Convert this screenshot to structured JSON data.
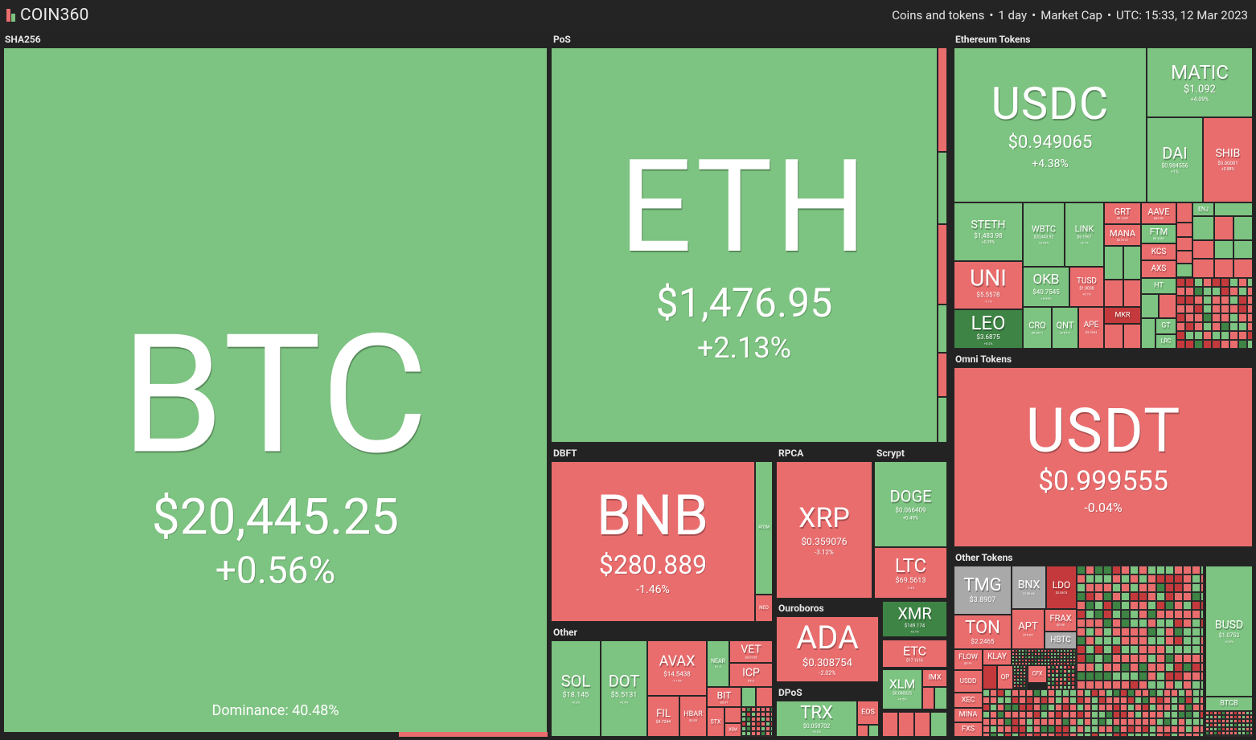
{
  "app": {
    "name": "COIN360"
  },
  "header": {
    "filter": "Coins and tokens",
    "period": "1 day",
    "metric": "Market Cap",
    "timestamp": "UTC: 15:33, 12 Mar 2023"
  },
  "colors": {
    "up": "#7dc381",
    "down": "#ea6d6e",
    "strong_up": "#3e8445",
    "strong_down": "#c43a3c",
    "neutral": "#a9a9a9",
    "background": "#222322"
  },
  "sections": {
    "sha256": "SHA256",
    "pos": "PoS",
    "eth_tokens": "Ethereum Tokens",
    "omni": "Omni Tokens",
    "dbft": "DBFT",
    "rpca": "RPCA",
    "scrypt": "Scrypt",
    "other": "Other",
    "ouroboros": "Ouroboros",
    "dpos": "DPoS",
    "other_tokens": "Other Tokens"
  },
  "coins": {
    "btc": {
      "symbol": "BTC",
      "price": "$20,445.25",
      "change": "+0.56%",
      "dominance": "Dominance: 40.48%"
    },
    "eth": {
      "symbol": "ETH",
      "price": "$1,476.95",
      "change": "+2.13%"
    },
    "usdc": {
      "symbol": "USDC",
      "price": "$0.949065",
      "change": "+4.38%"
    },
    "matic": {
      "symbol": "MATIC",
      "price": "$1.092",
      "change": "+4.09%"
    },
    "dai": {
      "symbol": "DAI",
      "price": "$0.984556",
      "change": "+1%"
    },
    "shib": {
      "symbol": "SHIB",
      "price": "$0.00001",
      "change": "+0.88%"
    },
    "steth": {
      "symbol": "STETH",
      "price": "$1,483.98",
      "change": "+0.29%"
    },
    "wbtc": {
      "symbol": "WBTC",
      "price": "$20,443.92",
      "change": "+0.32%"
    },
    "link": {
      "symbol": "LINK",
      "price": "$6.1967",
      "change": "+3.1%"
    },
    "grt": {
      "symbol": "GRT",
      "price": "$0.1207"
    },
    "aave": {
      "symbol": "AAVE",
      "price": "$62.06"
    },
    "mana": {
      "symbol": "MANA",
      "price": "$0.5131"
    },
    "ftm": {
      "symbol": "FTM",
      "price": "$0.3462"
    },
    "enj": {
      "symbol": "ENJ"
    },
    "kcs": {
      "symbol": "KCS"
    },
    "axs": {
      "symbol": "AXS"
    },
    "uni": {
      "symbol": "UNI",
      "price": "$5.5578",
      "change": "-1.1%"
    },
    "okb": {
      "symbol": "OKB",
      "price": "$40.7545",
      "change": "+0.95%"
    },
    "tusd": {
      "symbol": "TUSD",
      "price": "$1.0038",
      "change": "+0.1%"
    },
    "leo": {
      "symbol": "LEO",
      "price": "$3.6875",
      "change": "+5.2%"
    },
    "cro": {
      "symbol": "CRO",
      "price": "$0.0611"
    },
    "qnt": {
      "symbol": "QNT",
      "price": "$107.5"
    },
    "ape": {
      "symbol": "APE",
      "price": "$3.7804"
    },
    "mkr": {
      "symbol": "MKR"
    },
    "ht": {
      "symbol": "HT"
    },
    "gt": {
      "symbol": "GT"
    },
    "lrc": {
      "symbol": "LRC"
    },
    "usdt": {
      "symbol": "USDT",
      "price": "$0.999555",
      "change": "-0.04%"
    },
    "bnb": {
      "symbol": "BNB",
      "price": "$280.889",
      "change": "-1.46%"
    },
    "atom": {
      "symbol": "ATOM"
    },
    "neo": {
      "symbol": "NEO"
    },
    "xrp": {
      "symbol": "XRP",
      "price": "$0.359076",
      "change": "-3.12%"
    },
    "doge": {
      "symbol": "DOGE",
      "price": "$0.066409",
      "change": "+0.49%"
    },
    "ltc": {
      "symbol": "LTC",
      "price": "$69.5613",
      "change": "-1.4%"
    },
    "xmr": {
      "symbol": "XMR",
      "price": "$149.174",
      "change": "+3.1%"
    },
    "etc": {
      "symbol": "ETC",
      "price": "$17.1616"
    },
    "xlm": {
      "symbol": "XLM",
      "price": "$0.080025",
      "change": "+0.5%"
    },
    "imx": {
      "symbol": "IMX"
    },
    "ada": {
      "symbol": "ADA",
      "price": "$0.308754",
      "change": "-2.02%"
    },
    "trx": {
      "symbol": "TRX",
      "price": "$0.059702",
      "change": "+0.2%"
    },
    "eos": {
      "symbol": "EOS"
    },
    "sol": {
      "symbol": "SOL",
      "price": "$18.145",
      "change": "+0.3%"
    },
    "dot": {
      "symbol": "DOT",
      "price": "$5.5131",
      "change": "+0.4%"
    },
    "avax": {
      "symbol": "AVAX",
      "price": "$14.5438",
      "change": "-1.13%"
    },
    "near": {
      "symbol": "NEAR",
      "price": "$1.6"
    },
    "vet": {
      "symbol": "VET",
      "price": "$0.0185"
    },
    "icp": {
      "symbol": "ICP",
      "price": "$4.3"
    },
    "fil": {
      "symbol": "FIL",
      "price": "$4.7244"
    },
    "hbar": {
      "symbol": "HBAR",
      "price": "$0.05"
    },
    "bit": {
      "symbol": "BIT",
      "price": "$0.41"
    },
    "stx": {
      "symbol": "STX"
    },
    "xem": {
      "symbol": "XEM"
    },
    "tmg": {
      "symbol": "TMG",
      "price": "$3.8907"
    },
    "bnx": {
      "symbol": "BNX",
      "price": "$100.66"
    },
    "ldo": {
      "symbol": "LDO",
      "price": "$2.0873"
    },
    "ton": {
      "symbol": "TON",
      "price": "$2.2465"
    },
    "apt": {
      "symbol": "APT",
      "price": "$10.04"
    },
    "frax": {
      "symbol": "FRAX",
      "price": "$0.98"
    },
    "hbtc": {
      "symbol": "HBTC"
    },
    "flow": {
      "symbol": "FLOW",
      "price": "$0.91"
    },
    "klay": {
      "symbol": "KLAY"
    },
    "usdd": {
      "symbol": "USDD"
    },
    "op": {
      "symbol": "OP"
    },
    "xec": {
      "symbol": "XEC"
    },
    "mina": {
      "symbol": "MINA"
    },
    "fxs": {
      "symbol": "FXS"
    },
    "cfx": {
      "symbol": "CFX"
    },
    "busd": {
      "symbol": "BUSD",
      "price": "$1.0753",
      "change": "+0.5%"
    },
    "btcb": {
      "symbol": "BTCB"
    }
  }
}
